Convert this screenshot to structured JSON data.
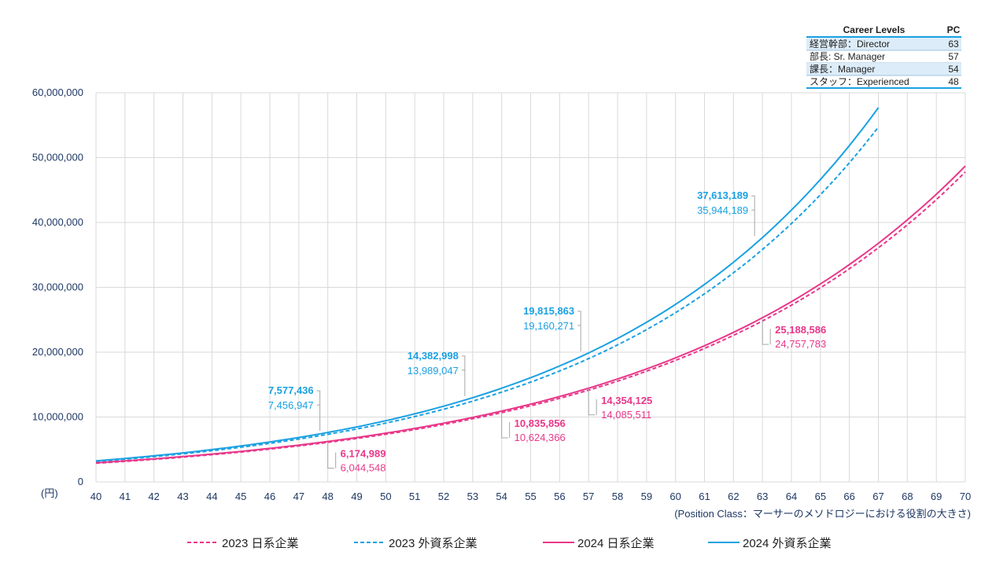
{
  "chart_data": {
    "type": "line",
    "y_unit_label": "(円)",
    "x_caption": "(Position Class：マーサーのメソドロジーにおける役割の大きさ)",
    "xlim": [
      40,
      70
    ],
    "ylim": [
      0,
      60000000
    ],
    "y_ticks": [
      0,
      10000000,
      20000000,
      30000000,
      40000000,
      50000000,
      60000000
    ],
    "y_tick_labels": [
      "0",
      "10,000,000",
      "20,000,000",
      "30,000,000",
      "40,000,000",
      "50,000,000",
      "60,000,000"
    ],
    "x_ticks": [
      40,
      41,
      42,
      43,
      44,
      45,
      46,
      47,
      48,
      49,
      50,
      51,
      52,
      53,
      54,
      55,
      56,
      57,
      58,
      59,
      60,
      61,
      62,
      63,
      64,
      65,
      66,
      67,
      68,
      69,
      70
    ],
    "grid": true,
    "colors": {
      "jp": "#e8388a",
      "foreign": "#1ba1e2",
      "axis_text": "#1f3864",
      "grid": "#d9d9d9"
    },
    "series": [
      {
        "name": "2023 日系企業",
        "group": "jp",
        "dashed": true,
        "x_range": [
          40,
          70
        ],
        "y_start": 2880000,
        "y_end": 47800000,
        "points": [
          {
            "x": 48,
            "y": 6044548
          },
          {
            "x": 54,
            "y": 10624366
          },
          {
            "x": 57,
            "y": 14085511
          },
          {
            "x": 63,
            "y": 24757783
          }
        ]
      },
      {
        "name": "2023 外資系企業",
        "group": "foreign",
        "dashed": true,
        "x_range": [
          40,
          67
        ],
        "y_start": 3150000,
        "y_end": 54700000,
        "points": [
          {
            "x": 48,
            "y": 7456947
          },
          {
            "x": 53,
            "y": 13989047
          },
          {
            "x": 57,
            "y": 19160271
          },
          {
            "x": 63,
            "y": 35944189
          }
        ]
      },
      {
        "name": "2024 日系企業",
        "group": "jp",
        "dashed": false,
        "x_range": [
          40,
          70
        ],
        "y_start": 2950000,
        "y_end": 48700000,
        "points": [
          {
            "x": 48,
            "y": 6174989
          },
          {
            "x": 54,
            "y": 10835856
          },
          {
            "x": 57,
            "y": 14354125
          },
          {
            "x": 63,
            "y": 25188586
          }
        ]
      },
      {
        "name": "2024 外資系企業",
        "group": "foreign",
        "dashed": false,
        "x_range": [
          40,
          67
        ],
        "y_start": 3250000,
        "y_end": 57700000,
        "points": [
          {
            "x": 48,
            "y": 7577436
          },
          {
            "x": 53,
            "y": 14382998
          },
          {
            "x": 57,
            "y": 19815863
          },
          {
            "x": 63,
            "y": 37613189
          }
        ]
      }
    ],
    "annotations": [
      {
        "x": 48,
        "group": "foreign",
        "side": "left",
        "bold": "7,577,436",
        "normal": "7,456,947"
      },
      {
        "x": 53,
        "group": "foreign",
        "side": "left",
        "bold": "14,382,998",
        "normal": "13,989,047"
      },
      {
        "x": 57,
        "group": "foreign",
        "side": "left",
        "bold": "19,815,863",
        "normal": "19,160,271"
      },
      {
        "x": 63,
        "group": "foreign",
        "side": "left",
        "bold": "37,613,189",
        "normal": "35,944,189"
      },
      {
        "x": 48,
        "group": "jp",
        "side": "right",
        "bold": "6,174,989",
        "normal": "6,044,548"
      },
      {
        "x": 54,
        "group": "jp",
        "side": "right",
        "bold": "10,835,856",
        "normal": "10,624,366"
      },
      {
        "x": 57,
        "group": "jp",
        "side": "right",
        "bold": "14,354,125",
        "normal": "14,085,511"
      },
      {
        "x": 63,
        "group": "jp",
        "side": "right",
        "bold": "25,188,586",
        "normal": "24,757,783"
      }
    ],
    "legend": [
      {
        "label": "2023 日系企業",
        "group": "jp",
        "dashed": true
      },
      {
        "label": "2023 外資系企業",
        "group": "foreign",
        "dashed": true
      },
      {
        "label": "2024 日系企業",
        "group": "jp",
        "dashed": false
      },
      {
        "label": "2024 外資系企業",
        "group": "foreign",
        "dashed": false
      }
    ],
    "career_table": {
      "headers": [
        "Career Levels",
        "PC"
      ],
      "rows": [
        {
          "level": "経営幹部：Director",
          "pc": "63"
        },
        {
          "level": "部長: Sr. Manager",
          "pc": "57"
        },
        {
          "level": "課長：Manager",
          "pc": "54"
        },
        {
          "level": "スタッフ：Experienced",
          "pc": "48"
        }
      ]
    }
  }
}
